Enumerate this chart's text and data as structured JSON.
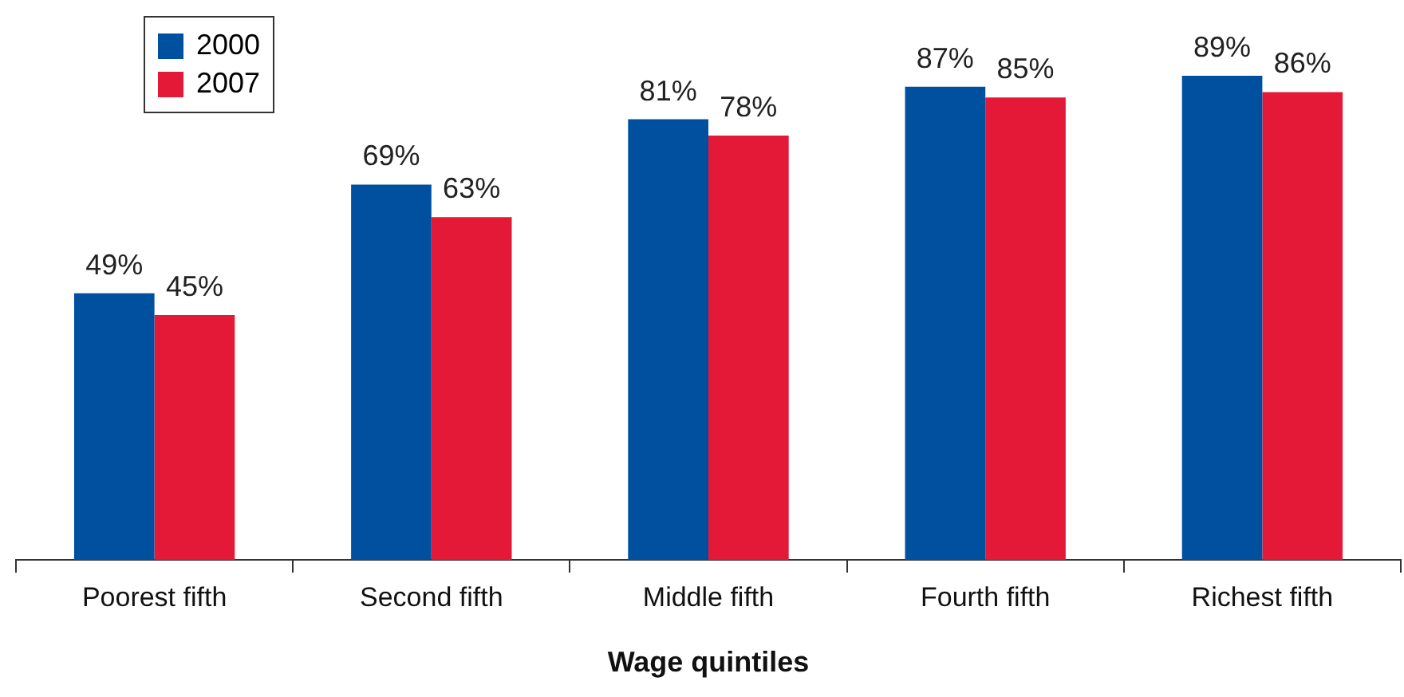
{
  "chart_data": {
    "type": "bar",
    "xlabel": "Wage quintiles",
    "categories": [
      "Poorest fifth",
      "Second fifth",
      "Middle fifth",
      "Fourth fifth",
      "Richest fifth"
    ],
    "series": [
      {
        "name": "2000",
        "color": "#0050a0",
        "values": [
          49,
          69,
          81,
          87,
          89
        ],
        "value_labels": [
          "49%",
          "69%",
          "81%",
          "87%",
          "89%"
        ]
      },
      {
        "name": "2007",
        "color": "#e31937",
        "values": [
          45,
          63,
          78,
          85,
          86
        ],
        "value_labels": [
          "45%",
          "63%",
          "78%",
          "85%",
          "86%"
        ]
      }
    ],
    "ylim": [
      0,
      100
    ],
    "tick_labels": "x",
    "grid": false,
    "legend": "top left"
  }
}
